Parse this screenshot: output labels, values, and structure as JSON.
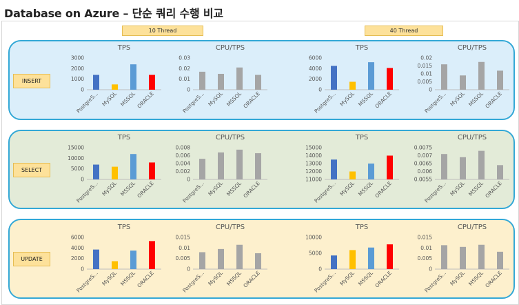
{
  "title": "Database on Azure – 단순 쿼리 수행 비교",
  "thread_labels": [
    "10 Thread",
    "40 Thread"
  ],
  "row_labels": [
    "INSERT",
    "SELECT",
    "UPDATE"
  ],
  "colors": {
    "PostgreSQL": "#4472c4",
    "MySQL": "#ffc000",
    "MSSQL": "#5b9bd5",
    "ORACLE": "#ff0000",
    "cpu": "#a5a5a5",
    "panel_insert": "#dbeefa",
    "panel_select": "#e3ebd8",
    "panel_update": "#fdf0cd",
    "panel_border": "#33a8d6"
  },
  "chart_data": [
    {
      "type": "bar",
      "row": "INSERT",
      "thread": "10 Thread",
      "title": "TPS",
      "categories": [
        "PostgreS...",
        "MySQL",
        "MSSQL",
        "ORACLE"
      ],
      "values": [
        1400,
        500,
        2400,
        1400
      ],
      "ylim": [
        0,
        3000
      ],
      "yticks": [
        "0",
        "1000",
        "2000",
        "3000"
      ],
      "series_colors": [
        "#4472c4",
        "#ffc000",
        "#5b9bd5",
        "#ff0000"
      ]
    },
    {
      "type": "bar",
      "row": "INSERT",
      "thread": "10 Thread",
      "title": "CPU/TPS",
      "categories": [
        "PostgreS...",
        "MySQL",
        "MSSQL",
        "ORACLE"
      ],
      "values": [
        0.017,
        0.015,
        0.021,
        0.014
      ],
      "ylim": [
        0,
        0.03
      ],
      "yticks": [
        "0",
        "0.01",
        "0.02",
        "0.03"
      ],
      "series_colors": [
        "#a5a5a5",
        "#a5a5a5",
        "#a5a5a5",
        "#a5a5a5"
      ]
    },
    {
      "type": "bar",
      "row": "INSERT",
      "thread": "40 Thread",
      "title": "TPS",
      "categories": [
        "PostgreS...",
        "MySQL",
        "MSSQL",
        "ORACLE"
      ],
      "values": [
        4500,
        1500,
        5200,
        4100
      ],
      "ylim": [
        0,
        6000
      ],
      "yticks": [
        "0",
        "2000",
        "4000",
        "6000"
      ],
      "series_colors": [
        "#4472c4",
        "#ffc000",
        "#5b9bd5",
        "#ff0000"
      ]
    },
    {
      "type": "bar",
      "row": "INSERT",
      "thread": "40 Thread",
      "title": "CPU/TPS",
      "categories": [
        "PostgreS...",
        "MySQL",
        "MSSQL",
        "ORACLE"
      ],
      "values": [
        0.016,
        0.009,
        0.0175,
        0.012
      ],
      "ylim": [
        0,
        0.02
      ],
      "yticks": [
        "0",
        "0.005",
        "0.01",
        "0.015",
        "0.02"
      ],
      "series_colors": [
        "#a5a5a5",
        "#a5a5a5",
        "#a5a5a5",
        "#a5a5a5"
      ]
    },
    {
      "type": "bar",
      "row": "SELECT",
      "thread": "10 Thread",
      "title": "TPS",
      "categories": [
        "PostgreS...",
        "MySQL",
        "MSSQL",
        "ORACLE"
      ],
      "values": [
        7000,
        6000,
        12000,
        8000
      ],
      "ylim": [
        0,
        15000
      ],
      "yticks": [
        "0",
        "5000",
        "10000",
        "15000"
      ],
      "series_colors": [
        "#4472c4",
        "#ffc000",
        "#5b9bd5",
        "#ff0000"
      ]
    },
    {
      "type": "bar",
      "row": "SELECT",
      "thread": "10 Thread",
      "title": "CPU/TPS",
      "categories": [
        "PostgreS...",
        "MySQL",
        "MSSQL",
        "ORACLE"
      ],
      "values": [
        0.0052,
        0.0068,
        0.0075,
        0.0066
      ],
      "ylim": [
        0,
        0.008
      ],
      "yticks": [
        "0",
        "0.002",
        "0.004",
        "0.006",
        "0.008"
      ],
      "series_colors": [
        "#a5a5a5",
        "#a5a5a5",
        "#a5a5a5",
        "#a5a5a5"
      ]
    },
    {
      "type": "bar",
      "row": "SELECT",
      "thread": "40 Thread",
      "title": "TPS",
      "categories": [
        "PostgreS...",
        "MySQL",
        "MSSQL",
        "ORACLE"
      ],
      "values": [
        13500,
        12000,
        13000,
        14000
      ],
      "ylim": [
        11000,
        15000
      ],
      "yticks": [
        "11000",
        "12000",
        "13000",
        "14000",
        "15000"
      ],
      "series_colors": [
        "#4472c4",
        "#ffc000",
        "#5b9bd5",
        "#ff0000"
      ]
    },
    {
      "type": "bar",
      "row": "SELECT",
      "thread": "40 Thread",
      "title": "CPU/TPS",
      "categories": [
        "PostgreS...",
        "MySQL",
        "MSSQL",
        "ORACLE"
      ],
      "values": [
        0.0071,
        0.0069,
        0.0073,
        0.0064
      ],
      "ylim": [
        0.0055,
        0.0075
      ],
      "yticks": [
        "0.0055",
        "0.006",
        "0.0065",
        "0.007",
        "0.0075"
      ],
      "series_colors": [
        "#a5a5a5",
        "#a5a5a5",
        "#a5a5a5",
        "#a5a5a5"
      ]
    },
    {
      "type": "bar",
      "row": "UPDATE",
      "thread": "10 Thread",
      "title": "TPS",
      "categories": [
        "PostgreS...",
        "MySQL",
        "MSSQL",
        "ORACLE"
      ],
      "values": [
        3700,
        1500,
        3500,
        5300
      ],
      "ylim": [
        0,
        6000
      ],
      "yticks": [
        "0",
        "2000",
        "4000",
        "6000"
      ],
      "series_colors": [
        "#4472c4",
        "#ffc000",
        "#5b9bd5",
        "#ff0000"
      ]
    },
    {
      "type": "bar",
      "row": "UPDATE",
      "thread": "10 Thread",
      "title": "CPU/TPS",
      "categories": [
        "PostgreS...",
        "MySQL",
        "MSSQL",
        "ORACLE"
      ],
      "values": [
        0.008,
        0.0095,
        0.0115,
        0.0075
      ],
      "ylim": [
        0,
        0.015
      ],
      "yticks": [
        "0",
        "0.005",
        "0.01",
        "0.015"
      ],
      "series_colors": [
        "#a5a5a5",
        "#a5a5a5",
        "#a5a5a5",
        "#a5a5a5"
      ]
    },
    {
      "type": "bar",
      "row": "UPDATE",
      "thread": "40 Thread",
      "title": "TPS",
      "categories": [
        "PostgreS...",
        "MySQL",
        "MSSQL",
        "ORACLE"
      ],
      "values": [
        4300,
        6000,
        6800,
        7800
      ],
      "ylim": [
        0,
        10000
      ],
      "yticks": [
        "0",
        "5000",
        "10000"
      ],
      "series_colors": [
        "#4472c4",
        "#ffc000",
        "#5b9bd5",
        "#ff0000"
      ]
    },
    {
      "type": "bar",
      "row": "UPDATE",
      "thread": "40 Thread",
      "title": "CPU/TPS",
      "categories": [
        "PostgreS...",
        "MySQL",
        "MSSQL",
        "ORACLE"
      ],
      "values": [
        0.0113,
        0.0105,
        0.0115,
        0.0082
      ],
      "ylim": [
        0,
        0.015
      ],
      "yticks": [
        "0",
        "0.005",
        "0.01",
        "0.015"
      ],
      "series_colors": [
        "#a5a5a5",
        "#a5a5a5",
        "#a5a5a5",
        "#a5a5a5"
      ]
    }
  ]
}
